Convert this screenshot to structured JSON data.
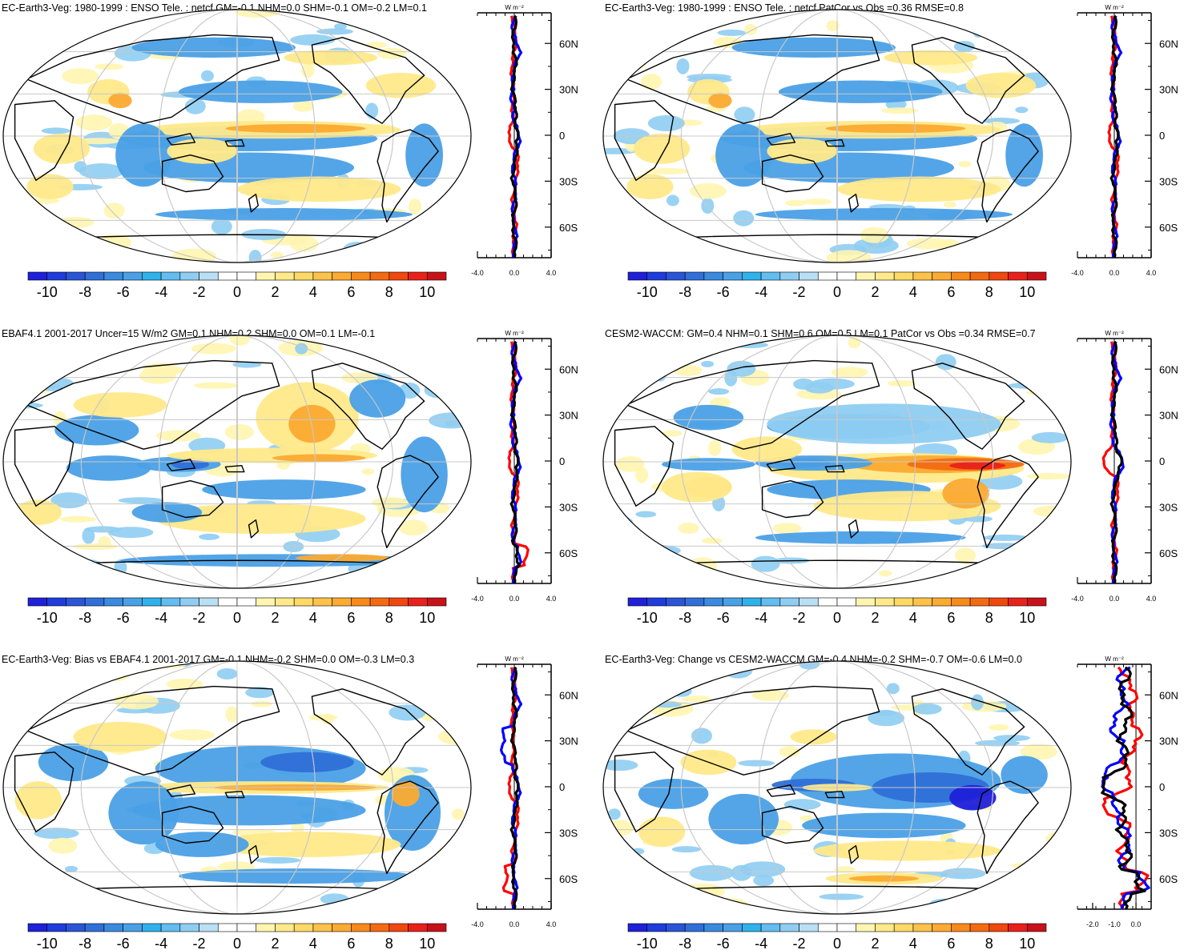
{
  "panels": [
    {
      "id": "ec-earth3-veg-1980",
      "title": "EC-Earth3-Veg: 1980-1999 : ENSO Tele. : netcf GM=-0.1 NHM=0.0 SHM=-0.1 OM=-0.2 LM=0.1",
      "zonal_xticks": [
        "-4.0",
        "0.0",
        "4.0"
      ],
      "zonal_xrange": [
        -4,
        4
      ],
      "zonal_type": "plain"
    },
    {
      "id": "ec-earth3-veg-patcor",
      "title": "EC-Earth3-Veg: 1980-1999 : ENSO Tele. : netcf PatCor vs Obs =0.36 RMSE=0.8",
      "zonal_xticks": [
        "-4.0",
        "0.0",
        "4.0"
      ],
      "zonal_xrange": [
        -4,
        4
      ],
      "zonal_type": "plain"
    },
    {
      "id": "ebaf41",
      "title": "EBAF4.1 2001-2017 Uncer=15 W/m2 GM=0.1 NHM=0.2 SHM=0.0 OM=0.1 LM=-0.1",
      "zonal_xticks": [
        "-4.0",
        "0.0",
        "4.0"
      ],
      "zonal_xrange": [
        -4,
        4
      ],
      "zonal_type": "ebaf"
    },
    {
      "id": "cesm2-waccm",
      "title": "CESM2-WACCM: GM=0.4 NHM=0.1 SHM=0.6 OM=0.5 LM=0.1 PatCor vs Obs =0.34 RMSE=0.7",
      "zonal_xticks": [
        "-4.0",
        "0.0",
        "4.0"
      ],
      "zonal_xrange": [
        -4,
        4
      ],
      "zonal_type": "cesm"
    },
    {
      "id": "ec-earth3-veg-bias",
      "title": "EC-Earth3-Veg: Bias vs EBAF4.1 2001-2017 GM=-0.1 NHM=-0.2 SHM=0.0 OM=-0.3 LM=0.3",
      "zonal_xticks": [
        "-4.0",
        "0.0",
        "4.0"
      ],
      "zonal_xrange": [
        -4,
        4
      ],
      "zonal_type": "bias"
    },
    {
      "id": "ec-earth3-veg-change",
      "title": "EC-Earth3-Veg: Change vs CESM2-WACCM GM=-0.4 NHM=-0.2 SHM=-0.7 OM=-0.6 LM=0.0",
      "zonal_xticks": [
        "-2.0",
        "-1.0",
        "0.0"
      ],
      "zonal_xrange": [
        -2.7,
        0.7
      ],
      "zonal_type": "change"
    }
  ],
  "zonal_unit": "W m⁻²",
  "lat_ticks": [
    "60N",
    "30N",
    "0",
    "30S",
    "60S"
  ],
  "colorbar": {
    "labels": [
      "-10",
      "-8",
      "-6",
      "-4",
      "-2",
      "0",
      "2",
      "4",
      "6",
      "8",
      "10"
    ],
    "colors": [
      "#2020d8",
      "#1f3ddc",
      "#2a55d6",
      "#2f6fd8",
      "#3a8ae0",
      "#4aa0e6",
      "#2fb2ec",
      "#62bdf0",
      "#8fcdf2",
      "#b9dff5",
      "#ffffff",
      "#ffffff",
      "#fff5b0",
      "#ffe98a",
      "#ffd966",
      "#fec24a",
      "#fbaa32",
      "#f88a1a",
      "#f46a12",
      "#f0480e",
      "#e8221a",
      "#c8121a"
    ]
  },
  "line_colors": {
    "red": "#ff0000",
    "blue": "#0000ff",
    "black": "#000000"
  },
  "map_colors": {
    "lightblue": "#8fcdf2",
    "blue": "#4aa0e6",
    "deepblue": "#2f6fd8",
    "darkblue": "#2020d8",
    "lightyellow": "#fff5b0",
    "yellow": "#ffe98a",
    "orange": "#fbaa32",
    "darkorange": "#f46a12",
    "red": "#e8221a"
  }
}
